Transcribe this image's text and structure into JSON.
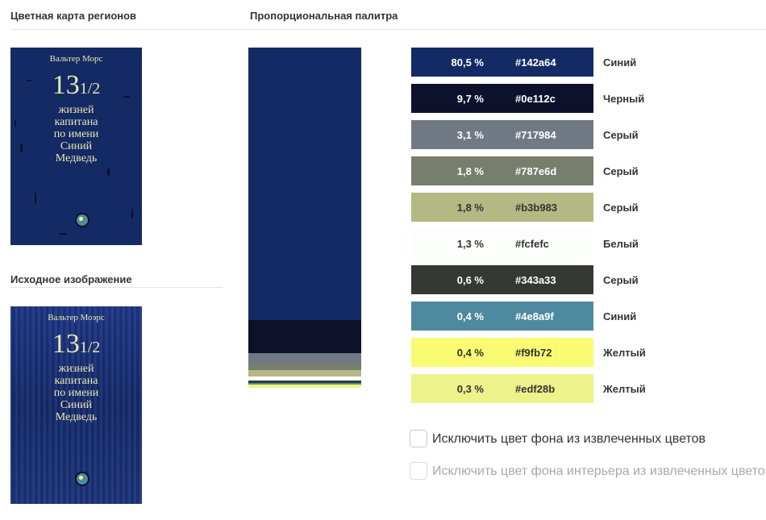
{
  "headings": {
    "region_map": "Цветная карта регионов",
    "palette": "Пропорциональная палитра",
    "source": "Исходное изображение"
  },
  "cover": {
    "author": "Вальтер Морс",
    "number": "13",
    "fraction": "1/2",
    "title_lines": [
      "жизней",
      "капитана",
      "по имени",
      "Синий",
      "Медведь"
    ]
  },
  "cover_orig": {
    "author": "Вальтер Моэрс",
    "number": "13",
    "fraction": "1/2",
    "title_lines": [
      "жизней",
      "капитана",
      "по имени",
      "Синий",
      "Медведь"
    ]
  },
  "palette": [
    {
      "percent": "80,5 %",
      "percent_value": 80.5,
      "hex": "#142a64",
      "name": "Синий",
      "text_color": "#ffffff"
    },
    {
      "percent": "9,7 %",
      "percent_value": 9.7,
      "hex": "#0e112c",
      "name": "Черный",
      "text_color": "#ffffff"
    },
    {
      "percent": "3,1 %",
      "percent_value": 3.1,
      "hex": "#717984",
      "name": "Серый",
      "text_color": "#ffffff"
    },
    {
      "percent": "1,8 %",
      "percent_value": 1.8,
      "hex": "#787e6d",
      "name": "Серый",
      "text_color": "#ffffff"
    },
    {
      "percent": "1,8 %",
      "percent_value": 1.8,
      "hex": "#b3b983",
      "name": "Серый",
      "text_color": "#333333"
    },
    {
      "percent": "1,3 %",
      "percent_value": 1.3,
      "hex": "#fcfefc",
      "name": "Белый",
      "text_color": "#333333"
    },
    {
      "percent": "0,6 %",
      "percent_value": 0.6,
      "hex": "#343a33",
      "name": "Серый",
      "text_color": "#ffffff"
    },
    {
      "percent": "0,4 %",
      "percent_value": 0.4,
      "hex": "#4e8a9f",
      "name": "Синий",
      "text_color": "#ffffff"
    },
    {
      "percent": "0,4 %",
      "percent_value": 0.4,
      "hex": "#f9fb72",
      "name": "Желтый",
      "text_color": "#333333"
    },
    {
      "percent": "0,3 %",
      "percent_value": 0.3,
      "hex": "#edf28b",
      "name": "Желтый",
      "text_color": "#333333"
    }
  ],
  "options": {
    "exclude_bg": {
      "label": "Исключить цвет фона из извлеченных цветов",
      "checked": false,
      "enabled": true
    },
    "exclude_interior_bg": {
      "label": "Исключить цвет фона интерьера из извлеченных цветов",
      "checked": false,
      "enabled": false
    }
  }
}
